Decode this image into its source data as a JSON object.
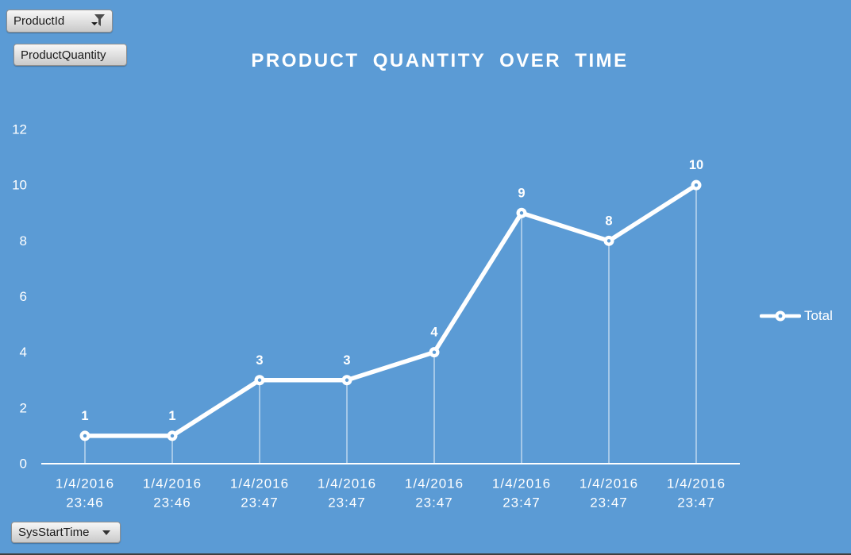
{
  "window": {
    "background": "#5B9BD5"
  },
  "field_buttons": {
    "product_id": "ProductId",
    "product_quantity": "ProductQuantity",
    "sys_start_time": "SysStartTime"
  },
  "chart_data": {
    "type": "line",
    "title": "PRODUCT QUANTITY OVER TIME",
    "categories": [
      "1/4/2016 23:46",
      "1/4/2016 23:46",
      "1/4/2016 23:47",
      "1/4/2016 23:47",
      "1/4/2016 23:47",
      "1/4/2016 23:47",
      "1/4/2016 23:47",
      "1/4/2016 23:47"
    ],
    "series": [
      {
        "name": "Total",
        "values": [
          1,
          1,
          3,
          3,
          4,
          9,
          8,
          10
        ]
      }
    ],
    "xlabel": "",
    "ylabel": "",
    "ylim": [
      0,
      12
    ],
    "yticks": [
      0,
      2,
      4,
      6,
      8,
      10,
      12
    ],
    "grid": false,
    "drop_lines": true,
    "marker": "open-circle",
    "legend_position": "right",
    "colors": {
      "background": "#5B9BD5",
      "series": "#FFFFFF",
      "text": "#FFFFFF"
    }
  }
}
